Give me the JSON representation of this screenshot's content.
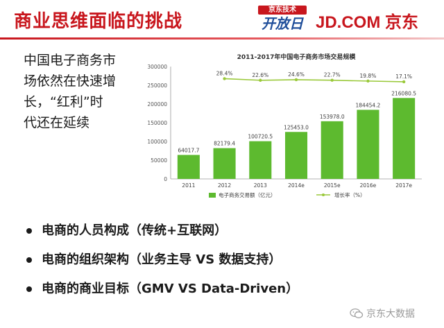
{
  "slide": {
    "title": "商业思维面临的挑战",
    "logo_tech_top": "京东技术",
    "logo_tech_bottom": "开放日",
    "logo_jd": "JD.COM 京东",
    "lead_lines": [
      "中国电子商务市",
      "场依然在快速增",
      "长，“红利”时",
      "代还在延续"
    ],
    "bullets": [
      "电商的人员构成（传统+互联网）",
      "电商的组织架构（业务主导 VS 数据支持）",
      "电商的商业目标（GMV VS Data-Driven）"
    ],
    "watermark": "京东大数据",
    "colors": {
      "accent": "#c8161d",
      "bar": "#5dba2f",
      "line": "#9ac93a"
    },
    "icons": {
      "bullet": "bullet-dot-icon",
      "watermark": "wechat-icon"
    }
  },
  "chart_data": {
    "type": "bar",
    "title": "2011-2017年中国电子商务市场交易规模",
    "categories": [
      "2011",
      "2012",
      "2013",
      "2014e",
      "2015e",
      "2016e",
      "2017e"
    ],
    "series": [
      {
        "name": "电子商务交易额（亿元）",
        "type": "bar",
        "values": [
          64017.7,
          82179.4,
          100720.5,
          125453.0,
          153978.0,
          184454.2,
          216080.5
        ],
        "labels": [
          "64017.7",
          "82179.4",
          "100720.5",
          "125453.0",
          "153978.0",
          "184454.2",
          "216080.5"
        ]
      },
      {
        "name": "增长率（%）",
        "type": "line",
        "values": [
          null,
          28.4,
          22.6,
          24.6,
          22.7,
          19.8,
          17.1
        ],
        "labels": [
          "",
          "28.4%",
          "22.6%",
          "24.6%",
          "22.7%",
          "19.8%",
          "17.1%"
        ]
      }
    ],
    "yticks": [
      "300000",
      "250000",
      "200000",
      "150000",
      "100000",
      "50000",
      "0"
    ],
    "ylim": [
      0,
      300000
    ],
    "grid": false,
    "legend": "bottom"
  }
}
